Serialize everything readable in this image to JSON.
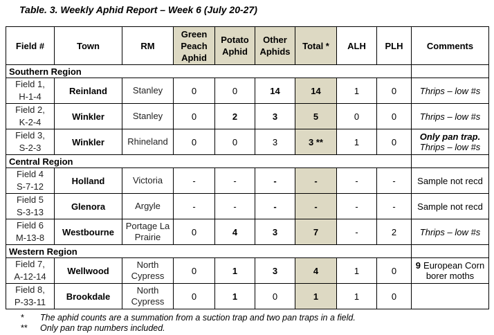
{
  "title": "Table. 3.  Weekly Aphid Report – Week 6 (July 20-27)",
  "headers": {
    "field": "Field #",
    "town": "Town",
    "rm": "RM",
    "green_peach": "Green Peach Aphid",
    "potato": "Potato Aphid",
    "other": "Other Aphids",
    "total": "Total *",
    "alh": "ALH",
    "plh": "PLH",
    "comments": "Comments"
  },
  "regions": [
    {
      "name": "Southern Region",
      "rows": [
        {
          "field": [
            "Field 1,",
            "H-1-4"
          ],
          "town": "Reinland",
          "rm": [
            "Stanley"
          ],
          "gpa": "0",
          "pa": "0",
          "oa": "14",
          "oa_bold": true,
          "pa_bold": false,
          "total": "14",
          "alh": "1",
          "plh": "0",
          "comments_bold": "",
          "comments": "Thrips – low #s"
        },
        {
          "field": [
            "Field 2,",
            "K-2-4"
          ],
          "town": "Winkler",
          "rm": [
            "Stanley"
          ],
          "gpa": "0",
          "pa": "2",
          "oa": "3",
          "oa_bold": true,
          "pa_bold": true,
          "total": "5",
          "alh": "0",
          "plh": "0",
          "comments_bold": "",
          "comments": "Thrips – low #s"
        },
        {
          "field": [
            "Field 3,",
            "S-2-3"
          ],
          "town": "Winkler",
          "rm": [
            "Rhineland"
          ],
          "gpa": "0",
          "pa": "0",
          "oa": "3",
          "oa_bold": false,
          "pa_bold": false,
          "total": "3 **",
          "alh": "1",
          "plh": "0",
          "comments_bold": "Only pan trap.",
          "comments": "Thrips – low #s"
        }
      ]
    },
    {
      "name": "Central Region",
      "rows": [
        {
          "field": [
            "Field 4",
            "S-7-12"
          ],
          "town": "Holland",
          "rm": [
            "Victoria"
          ],
          "gpa": "-",
          "pa": "-",
          "oa": "-",
          "oa_bold": true,
          "pa_bold": false,
          "total": "-",
          "alh": "-",
          "plh": "-",
          "comments_bold": "",
          "comments": "Sample not recd",
          "plain": true
        },
        {
          "field": [
            "Field 5",
            "S-3-13"
          ],
          "town": "Glenora",
          "rm": [
            "Argyle"
          ],
          "gpa": "-",
          "pa": "-",
          "oa": "-",
          "oa_bold": true,
          "pa_bold": false,
          "total": "-",
          "alh": "-",
          "plh": "-",
          "comments_bold": "",
          "comments": "Sample not recd",
          "plain": true
        },
        {
          "field": [
            "Field 6",
            "M-13-8"
          ],
          "town": "Westbourne",
          "rm": [
            "Portage La",
            "Prairie"
          ],
          "gpa": "0",
          "pa": "4",
          "oa": "3",
          "oa_bold": true,
          "pa_bold": true,
          "total": "7",
          "alh": "-",
          "plh": "2",
          "comments_bold": "",
          "comments": "Thrips – low #s"
        }
      ]
    },
    {
      "name": "Western Region",
      "rows": [
        {
          "field": [
            "Field 7,",
            "A-12-14"
          ],
          "town": "Wellwood",
          "rm": [
            "North",
            "Cypress"
          ],
          "gpa": "0",
          "pa": "1",
          "oa": "3",
          "oa_bold": true,
          "pa_bold": true,
          "total": "4",
          "alh": "1",
          "plh": "0",
          "comments_bold": "9",
          "comments": "European Corn borer moths",
          "plain": true
        },
        {
          "field": [
            "Field 8,",
            "P-33-11"
          ],
          "town": "Brookdale",
          "rm": [
            "North",
            "Cypress"
          ],
          "gpa": "0",
          "pa": "1",
          "oa": "0",
          "oa_bold": false,
          "pa_bold": true,
          "total": "1",
          "alh": "1",
          "plh": "0",
          "comments_bold": "",
          "comments": "",
          "plain": true
        }
      ]
    }
  ],
  "notes": [
    {
      "marker": "*",
      "text": "The aphid counts are a summation from a suction trap and two pan traps in a field."
    },
    {
      "marker": "**",
      "text": "Only pan trap numbers included."
    }
  ]
}
